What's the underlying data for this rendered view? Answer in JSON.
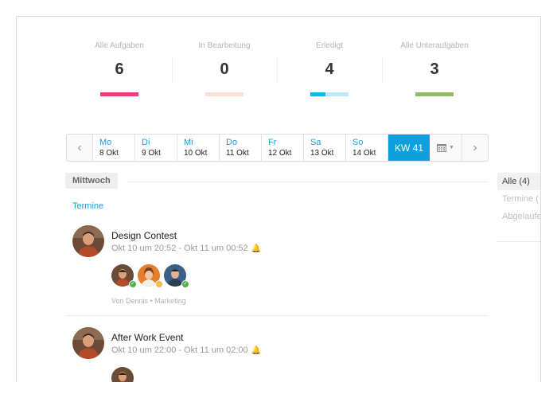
{
  "stats": [
    {
      "label": "Alle Aufgaben",
      "value": "6",
      "bar_color": "#ee3f7c"
    },
    {
      "label": "In Bearbeitung",
      "value": "0",
      "bar_color": "#fde1d6"
    },
    {
      "label": "Erledigt",
      "value": "4",
      "bar_color": "#bde9f7",
      "bar_progress_color": "#1ab5e8",
      "bar_progress_fraction": 0.4
    },
    {
      "label": "Alle Unteraufgaben",
      "value": "3",
      "bar_color": "#8dbe62"
    }
  ],
  "weeknav": {
    "prev_icon": "chevron-left-icon",
    "next_icon": "chevron-right-icon",
    "days": [
      {
        "name": "Mo",
        "date": "8 Okt"
      },
      {
        "name": "Di",
        "date": "9 Okt"
      },
      {
        "name": "Mi",
        "date": "10 Okt"
      },
      {
        "name": "Do",
        "date": "11 Okt"
      },
      {
        "name": "Fr",
        "date": "12 Okt"
      },
      {
        "name": "Sa",
        "date": "13 Okt"
      },
      {
        "name": "So",
        "date": "14 Okt"
      }
    ],
    "week_label": "KW 41",
    "calendar_icon": "calendar-icon",
    "accent": "#0fa0db"
  },
  "day_heading": "Mittwoch",
  "section_title": "Termine",
  "events": [
    {
      "title": "Design Contest",
      "time": "Okt 10 um 20:52 - Okt 11 um 00:52",
      "meta": "Von Dennis • Marketing",
      "participants": [
        {
          "status": "accepted",
          "status_color": "#4caf50"
        },
        {
          "status": "pending",
          "status_color": "#f5b942"
        },
        {
          "status": "accepted",
          "status_color": "#4caf50"
        }
      ]
    },
    {
      "title": "After Work Event",
      "time": "Okt 10 um 22:00 - Okt 11 um 02:00",
      "participants": [
        {
          "status": "",
          "status_color": ""
        }
      ]
    }
  ],
  "filters": [
    {
      "label": "Alle (4)",
      "active": true
    },
    {
      "label": "Termine (",
      "active": false
    },
    {
      "label": "Abgelaufe",
      "active": false
    }
  ]
}
